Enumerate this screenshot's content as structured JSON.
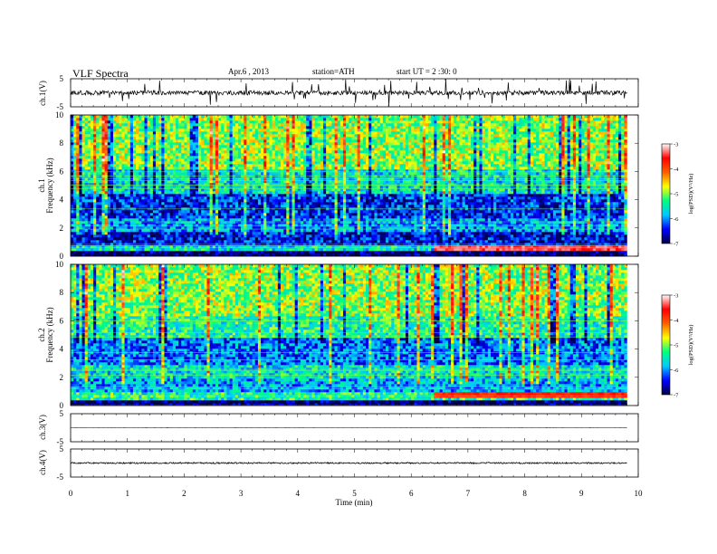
{
  "header": {
    "title": "VLF  Spectra",
    "date": "Apr.6  , 2013",
    "station": "station=ATH",
    "start_ut": "start  UT  =   2  :30: 0"
  },
  "chart_data": [
    {
      "type": "line",
      "panel": "ch1-waveform",
      "ylabel": "ch.1(V)",
      "yticks": [
        "5",
        "-5"
      ],
      "ylim": [
        -5,
        5
      ],
      "xlim": [
        0,
        10
      ],
      "data_end_min": 9.8,
      "baseline_v": 0.0,
      "noise_v": 0.8,
      "color": "#000000"
    },
    {
      "type": "heatmap",
      "panel": "ch1-spectrogram",
      "ylabel": "Frequency (kHz)",
      "channel_label": "ch.1",
      "yticks": [
        "0",
        "2",
        "4",
        "6",
        "8",
        "10"
      ],
      "ylim": [
        0,
        10
      ],
      "xlim": [
        0,
        10
      ],
      "data_end_min": 9.8,
      "colorbar": {
        "label": "log(PSD)(V²/Hz)",
        "ticks": [
          "-3",
          "-4",
          "-5",
          "-6",
          "-7"
        ],
        "range": [
          -7,
          -3
        ],
        "stops": [
          "#000044",
          "#0000ff",
          "#00c8ff",
          "#00ff80",
          "#ffff00",
          "#ff6000",
          "#ff0000",
          "#ffffff"
        ]
      },
      "bands": [
        {
          "f_from": 0.0,
          "f_to": 0.4,
          "log_psd": -6.9
        },
        {
          "f_from": 0.4,
          "f_to": 0.8,
          "log_psd": -5.6
        },
        {
          "f_from": 0.8,
          "f_to": 1.8,
          "log_psd": -6.5
        },
        {
          "f_from": 1.8,
          "f_to": 2.6,
          "log_psd": -6.0
        },
        {
          "f_from": 2.6,
          "f_to": 4.5,
          "log_psd": -6.4
        },
        {
          "f_from": 4.5,
          "f_to": 6.2,
          "log_psd": -5.6
        },
        {
          "f_from": 6.2,
          "f_to": 10.0,
          "log_psd": -5.0
        }
      ],
      "hot_line": {
        "f": 0.6,
        "t_from": 6.4,
        "t_to": 9.8,
        "log_psd": -3.4
      }
    },
    {
      "type": "heatmap",
      "panel": "ch2-spectrogram",
      "ylabel": "Frequency (kHz)",
      "channel_label": "ch.2",
      "yticks": [
        "0",
        "2",
        "4",
        "6",
        "8",
        "10"
      ],
      "ylim": [
        0,
        10
      ],
      "xlim": [
        0,
        10
      ],
      "data_end_min": 9.8,
      "colorbar": {
        "label": "log(PSD)(V²/Hz)",
        "ticks": [
          "-3",
          "-4",
          "-5",
          "-6",
          "-7"
        ],
        "range": [
          -7,
          -3
        ],
        "stops": [
          "#000044",
          "#0000ff",
          "#00c8ff",
          "#00ff80",
          "#ffff00",
          "#ff6000",
          "#ff0000",
          "#ffffff"
        ]
      },
      "bands": [
        {
          "f_from": 0.0,
          "f_to": 0.4,
          "log_psd": -6.9
        },
        {
          "f_from": 0.4,
          "f_to": 0.9,
          "log_psd": -5.4
        },
        {
          "f_from": 0.9,
          "f_to": 2.0,
          "log_psd": -5.9
        },
        {
          "f_from": 2.0,
          "f_to": 2.8,
          "log_psd": -5.6
        },
        {
          "f_from": 2.8,
          "f_to": 4.8,
          "log_psd": -6.1
        },
        {
          "f_from": 4.8,
          "f_to": 6.4,
          "log_psd": -5.4
        },
        {
          "f_from": 6.4,
          "f_to": 10.0,
          "log_psd": -5.0
        }
      ],
      "hot_line": {
        "f": 0.7,
        "t_from": 6.4,
        "t_to": 9.8,
        "log_psd": -3.8
      }
    },
    {
      "type": "line",
      "panel": "ch3-waveform",
      "ylabel": "ch.3(V)",
      "yticks": [
        "5",
        "-5"
      ],
      "ylim": [
        -5,
        5
      ],
      "xlim": [
        0,
        10
      ],
      "data_end_min": 9.8,
      "baseline_v": 0.0,
      "noise_v": 0.02,
      "color": "#000000"
    },
    {
      "type": "line",
      "panel": "ch4-waveform",
      "ylabel": "ch.4(V)",
      "yticks": [
        "5",
        "-5"
      ],
      "ylim": [
        -5,
        5
      ],
      "xlim": [
        0,
        10
      ],
      "data_end_min": 9.8,
      "baseline_v": 0.0,
      "noise_v": 0.25,
      "color": "#000000"
    }
  ],
  "xaxis": {
    "label": "Time  (min)",
    "ticks": [
      "0",
      "1",
      "2",
      "3",
      "4",
      "5",
      "6",
      "7",
      "8",
      "9",
      "10"
    ],
    "range": [
      0,
      10
    ]
  }
}
